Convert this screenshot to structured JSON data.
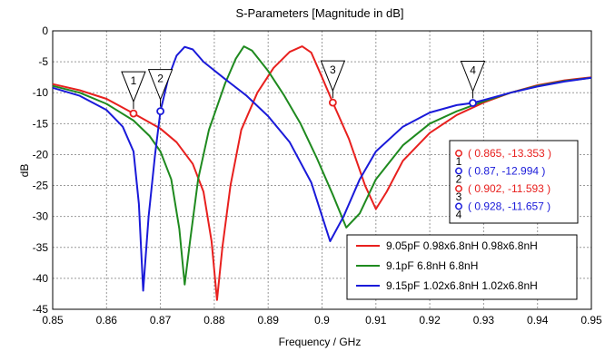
{
  "chart_data": {
    "type": "line",
    "title": "S-Parameters [Magnitude in dB]",
    "xlabel": "Frequency / GHz",
    "ylabel": "dB",
    "xlim": [
      0.85,
      0.95
    ],
    "ylim": [
      -45,
      0
    ],
    "xticks": [
      0.85,
      0.86,
      0.87,
      0.88,
      0.89,
      0.9,
      0.91,
      0.92,
      0.93,
      0.94,
      0.95
    ],
    "xtick_labels": [
      "0.85",
      "0.86",
      "0.87",
      "0.88",
      "0.89",
      "0.9",
      "0.91",
      "0.92",
      "0.93",
      "0.94",
      "0.95"
    ],
    "yticks": [
      0,
      -5,
      -10,
      -15,
      -20,
      -25,
      -30,
      -35,
      -40,
      -45
    ],
    "ytick_labels": [
      "0",
      "-5",
      "-10",
      "-15",
      "-20",
      "-25",
      "-30",
      "-35",
      "-40",
      "-45"
    ],
    "grid": true,
    "series": [
      {
        "name": "9.05pF 0.98x6.8nH 0.98x6.8nH",
        "color": "#e8201e",
        "points": [
          [
            0.85,
            -8.6
          ],
          [
            0.855,
            -9.6
          ],
          [
            0.86,
            -11.0
          ],
          [
            0.865,
            -13.35
          ],
          [
            0.87,
            -15.8
          ],
          [
            0.873,
            -18.0
          ],
          [
            0.876,
            -21.5
          ],
          [
            0.878,
            -26.0
          ],
          [
            0.8795,
            -34.0
          ],
          [
            0.8805,
            -43.5
          ],
          [
            0.8815,
            -35.0
          ],
          [
            0.883,
            -25.0
          ],
          [
            0.885,
            -16.0
          ],
          [
            0.888,
            -10.0
          ],
          [
            0.891,
            -6.0
          ],
          [
            0.894,
            -3.4
          ],
          [
            0.8963,
            -2.5
          ],
          [
            0.898,
            -3.5
          ],
          [
            0.9,
            -7.5
          ],
          [
            0.902,
            -11.6
          ],
          [
            0.905,
            -17.5
          ],
          [
            0.908,
            -25.0
          ],
          [
            0.91,
            -28.8
          ],
          [
            0.912,
            -26.0
          ],
          [
            0.915,
            -21.0
          ],
          [
            0.92,
            -16.5
          ],
          [
            0.925,
            -13.6
          ],
          [
            0.93,
            -11.6
          ],
          [
            0.935,
            -10.0
          ],
          [
            0.94,
            -8.8
          ],
          [
            0.945,
            -8.0
          ],
          [
            0.95,
            -7.5
          ]
        ]
      },
      {
        "name": "9.1pF 6.8nH 6.8nH",
        "color": "#1f8a1f",
        "points": [
          [
            0.85,
            -8.9
          ],
          [
            0.855,
            -10.0
          ],
          [
            0.86,
            -11.8
          ],
          [
            0.865,
            -14.5
          ],
          [
            0.868,
            -17.0
          ],
          [
            0.87,
            -19.5
          ],
          [
            0.872,
            -24.0
          ],
          [
            0.8735,
            -32.0
          ],
          [
            0.8745,
            -41.0
          ],
          [
            0.8755,
            -34.0
          ],
          [
            0.877,
            -24.0
          ],
          [
            0.879,
            -16.0
          ],
          [
            0.882,
            -8.5
          ],
          [
            0.884,
            -4.5
          ],
          [
            0.8855,
            -2.5
          ],
          [
            0.887,
            -3.2
          ],
          [
            0.89,
            -6.5
          ],
          [
            0.893,
            -10.5
          ],
          [
            0.896,
            -15.0
          ],
          [
            0.899,
            -20.5
          ],
          [
            0.902,
            -26.5
          ],
          [
            0.9045,
            -31.8
          ],
          [
            0.907,
            -29.5
          ],
          [
            0.91,
            -24.0
          ],
          [
            0.915,
            -18.5
          ],
          [
            0.92,
            -15.0
          ],
          [
            0.925,
            -13.0
          ],
          [
            0.93,
            -11.4
          ],
          [
            0.935,
            -10.0
          ],
          [
            0.94,
            -8.9
          ],
          [
            0.945,
            -8.1
          ],
          [
            0.95,
            -7.6
          ]
        ]
      },
      {
        "name": "9.15pF 1.02x6.8nH 1.02x6.8nH",
        "color": "#1a1ad9",
        "points": [
          [
            0.85,
            -9.2
          ],
          [
            0.855,
            -10.5
          ],
          [
            0.86,
            -12.8
          ],
          [
            0.863,
            -15.5
          ],
          [
            0.865,
            -19.5
          ],
          [
            0.866,
            -28.0
          ],
          [
            0.8668,
            -42.0
          ],
          [
            0.8678,
            -30.0
          ],
          [
            0.869,
            -20.0
          ],
          [
            0.87,
            -13.0
          ],
          [
            0.8715,
            -7.5
          ],
          [
            0.873,
            -4.0
          ],
          [
            0.8745,
            -2.6
          ],
          [
            0.876,
            -3.0
          ],
          [
            0.878,
            -5.0
          ],
          [
            0.882,
            -7.8
          ],
          [
            0.886,
            -10.5
          ],
          [
            0.89,
            -13.8
          ],
          [
            0.894,
            -18.0
          ],
          [
            0.898,
            -24.5
          ],
          [
            0.9015,
            -34.0
          ],
          [
            0.904,
            -30.0
          ],
          [
            0.907,
            -24.0
          ],
          [
            0.91,
            -19.5
          ],
          [
            0.915,
            -15.5
          ],
          [
            0.92,
            -13.2
          ],
          [
            0.925,
            -12.0
          ],
          [
            0.928,
            -11.66
          ],
          [
            0.93,
            -11.2
          ],
          [
            0.935,
            -10.0
          ],
          [
            0.94,
            -9.0
          ],
          [
            0.945,
            -8.2
          ],
          [
            0.95,
            -7.6
          ]
        ]
      }
    ],
    "markers": [
      {
        "id": "1",
        "x": 0.865,
        "y": -13.353,
        "color": "#e8201e",
        "readout": "( 0.865, -13.353 )"
      },
      {
        "id": "2",
        "x": 0.87,
        "y": -12.994,
        "color": "#1a1ad9",
        "readout": "( 0.87, -12.994 )"
      },
      {
        "id": "3",
        "x": 0.902,
        "y": -11.593,
        "color": "#e8201e",
        "readout": "( 0.902, -11.593 )"
      },
      {
        "id": "4",
        "x": 0.928,
        "y": -11.657,
        "color": "#1a1ad9",
        "readout": "( 0.928, -11.657 )"
      }
    ],
    "marker_box_placement": "right",
    "legend_placement": "bottom-right"
  }
}
